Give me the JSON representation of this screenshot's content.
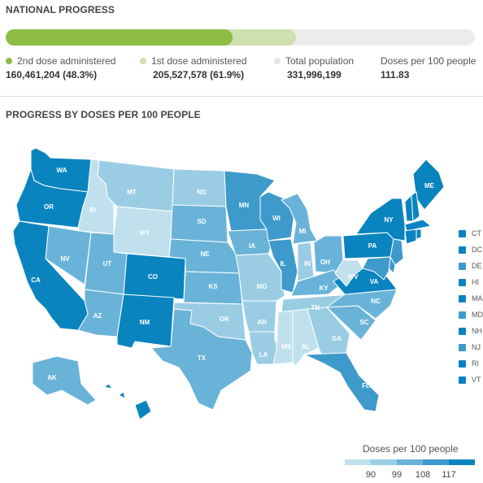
{
  "national": {
    "title": "NATIONAL PROGRESS",
    "second_dose_pct": 48.3,
    "first_dose_pct": 61.9,
    "legend": [
      {
        "label": "2nd dose administered",
        "value": "160,461,204 (48.3%)",
        "color": "#8dbd45"
      },
      {
        "label": "1st dose administered",
        "value": "205,527,578 (61.9%)",
        "color": "#cfe0b1"
      },
      {
        "label": "Total population",
        "value": "331,996,199",
        "color": "#e6e6e6"
      },
      {
        "label": "Doses per 100 people",
        "value": "111.83",
        "color": ""
      }
    ]
  },
  "map": {
    "title": "PROGRESS BY DOSES PER 100 PEOPLE",
    "colors": {
      "c1": "#bfe0ec",
      "c2": "#9acde4",
      "c3": "#6ab3d8",
      "c4": "#3d9acb",
      "c5": "#0a84bf"
    },
    "states": [
      {
        "abbr": "WA",
        "bin": 5
      },
      {
        "abbr": "OR",
        "bin": 5
      },
      {
        "abbr": "CA",
        "bin": 5
      },
      {
        "abbr": "ID",
        "bin": 1
      },
      {
        "abbr": "NV",
        "bin": 3
      },
      {
        "abbr": "MT",
        "bin": 2
      },
      {
        "abbr": "WY",
        "bin": 1
      },
      {
        "abbr": "UT",
        "bin": 3
      },
      {
        "abbr": "AZ",
        "bin": 3
      },
      {
        "abbr": "CO",
        "bin": 5
      },
      {
        "abbr": "NM",
        "bin": 5
      },
      {
        "abbr": "ND",
        "bin": 2
      },
      {
        "abbr": "SD",
        "bin": 3
      },
      {
        "abbr": "NE",
        "bin": 3
      },
      {
        "abbr": "KS",
        "bin": 3
      },
      {
        "abbr": "OK",
        "bin": 2
      },
      {
        "abbr": "TX",
        "bin": 3
      },
      {
        "abbr": "MN",
        "bin": 4
      },
      {
        "abbr": "IA",
        "bin": 3
      },
      {
        "abbr": "MO",
        "bin": 2
      },
      {
        "abbr": "AR",
        "bin": 2
      },
      {
        "abbr": "LA",
        "bin": 2
      },
      {
        "abbr": "WI",
        "bin": 4
      },
      {
        "abbr": "IL",
        "bin": 4
      },
      {
        "abbr": "MI",
        "bin": 3
      },
      {
        "abbr": "IN",
        "bin": 2
      },
      {
        "abbr": "OH",
        "bin": 3
      },
      {
        "abbr": "KY",
        "bin": 3
      },
      {
        "abbr": "TN",
        "bin": 2
      },
      {
        "abbr": "MS",
        "bin": 1
      },
      {
        "abbr": "AL",
        "bin": 1
      },
      {
        "abbr": "GA",
        "bin": 2
      },
      {
        "abbr": "FL",
        "bin": 4
      },
      {
        "abbr": "SC",
        "bin": 3
      },
      {
        "abbr": "NC",
        "bin": 3
      },
      {
        "abbr": "VA",
        "bin": 5
      },
      {
        "abbr": "WV",
        "bin": 1
      },
      {
        "abbr": "PA",
        "bin": 5
      },
      {
        "abbr": "NY",
        "bin": 5
      },
      {
        "abbr": "ME",
        "bin": 5
      },
      {
        "abbr": "AK",
        "bin": 3
      },
      {
        "abbr": "HI",
        "bin": 5
      }
    ],
    "small_states": [
      {
        "abbr": "CT",
        "bin": 5
      },
      {
        "abbr": "DC",
        "bin": 5
      },
      {
        "abbr": "DE",
        "bin": 4
      },
      {
        "abbr": "HI",
        "bin": 5
      },
      {
        "abbr": "MA",
        "bin": 5
      },
      {
        "abbr": "MD",
        "bin": 4
      },
      {
        "abbr": "NH",
        "bin": 5
      },
      {
        "abbr": "NJ",
        "bin": 4
      },
      {
        "abbr": "RI",
        "bin": 5
      },
      {
        "abbr": "VT",
        "bin": 5
      }
    ]
  },
  "scale": {
    "title": "Doses per 100 people",
    "ticks": [
      "90",
      "99",
      "108",
      "117"
    ],
    "colors": [
      "#bfe0ec",
      "#9acde4",
      "#6ab3d8",
      "#3d9acb",
      "#0a84bf"
    ]
  }
}
